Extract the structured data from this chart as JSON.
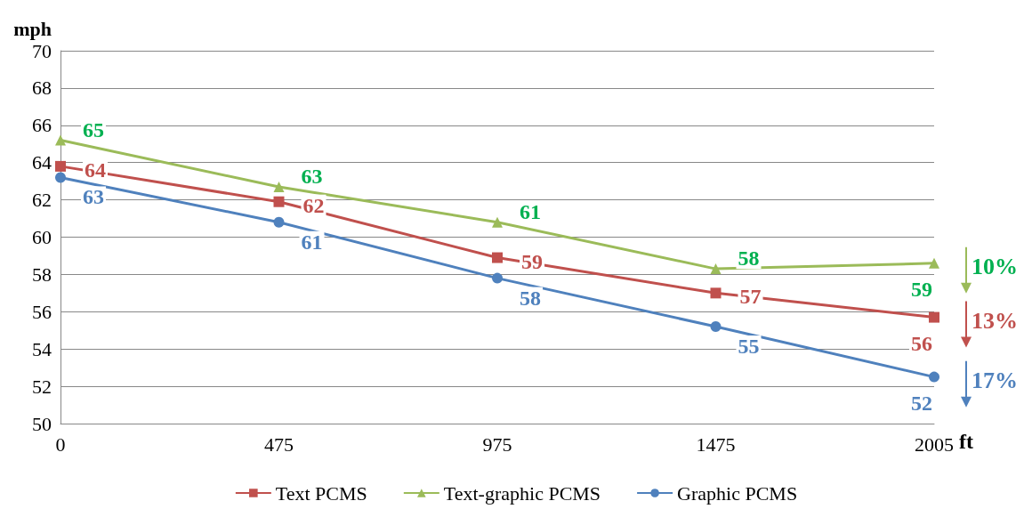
{
  "chart_data": {
    "type": "line",
    "xlabel": "ft",
    "ylabel": "mph",
    "categories": [
      "0",
      "475",
      "975",
      "1475",
      "2005"
    ],
    "ylim": [
      50,
      70
    ],
    "yticks": [
      50,
      52,
      54,
      56,
      58,
      60,
      62,
      64,
      66,
      68,
      70
    ],
    "grid": "y",
    "legend": "bottom",
    "line_style": "solid",
    "series": [
      {
        "name": "Text PCMS",
        "color": "#c0504d",
        "marker": "square",
        "values": [
          63.8,
          61.9,
          58.9,
          57.0,
          55.7
        ],
        "value_labels": [
          "64",
          "62",
          "59",
          "57",
          "56"
        ]
      },
      {
        "name": "Text-graphic PCMS",
        "color": "#9bbb59",
        "marker": "triangle",
        "values": [
          65.2,
          62.7,
          60.8,
          58.3,
          58.6
        ],
        "value_labels": [
          "65",
          "63",
          "61",
          "58",
          "59"
        ]
      },
      {
        "name": "Graphic PCMS",
        "color": "#4f81bd",
        "marker": "circle",
        "values": [
          63.2,
          60.8,
          57.8,
          55.2,
          52.5
        ],
        "value_labels": [
          "63",
          "61",
          "58",
          "55",
          "52"
        ]
      }
    ],
    "annotations": [
      {
        "text": "13%",
        "x": "2005",
        "y": 55.7
      },
      {
        "text": "10%",
        "x": "2005",
        "y": 58.6
      },
      {
        "text": "17%",
        "x": "2005",
        "y": 52.5
      }
    ]
  }
}
